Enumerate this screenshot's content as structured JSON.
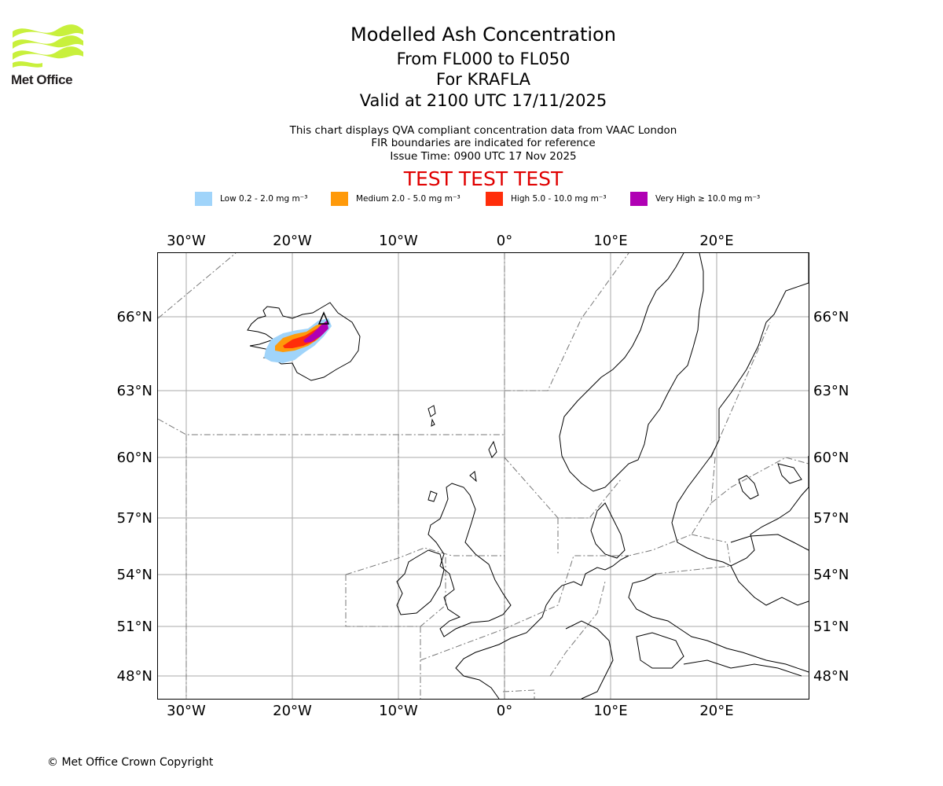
{
  "logo": {
    "name": "Met Office",
    "colors": [
      "#c8f03c",
      "#231f20"
    ]
  },
  "title": {
    "main": "Modelled Ash Concentration",
    "levels": "From FL000 to FL050",
    "volcano": "For KRAFLA",
    "valid": "Valid at 2100 UTC 17/11/2025"
  },
  "subtitle": {
    "line1": "This chart displays QVA compliant concentration data from VAAC London",
    "line2": "FIR boundaries are indicated for reference",
    "issue": "Issue Time: 0900 UTC 17 Nov 2025"
  },
  "test_banner": "TEST TEST TEST",
  "legend": [
    {
      "label": "Low 0.2 - 2.0 mg m⁻³",
      "color": "#a0d4fa"
    },
    {
      "label": "Medium 2.0 - 5.0 mg m⁻³",
      "color": "#ff9a0a"
    },
    {
      "label": "High 5.0 - 10.0 mg m⁻³",
      "color": "#ff2d0a"
    },
    {
      "label": "Very High  ≥  10.0 mg m⁻³",
      "color": "#b000b4"
    }
  ],
  "map": {
    "lon_labels": [
      "30°W",
      "20°W",
      "10°W",
      "0°",
      "10°E",
      "20°E"
    ],
    "lat_labels": [
      "66°N",
      "63°N",
      "60°N",
      "57°N",
      "54°N",
      "51°N",
      "48°N"
    ],
    "grid": true,
    "fir_boundaries": true,
    "volcano_marker": "triangle"
  },
  "copyright": "© Met Office Crown Copyright"
}
